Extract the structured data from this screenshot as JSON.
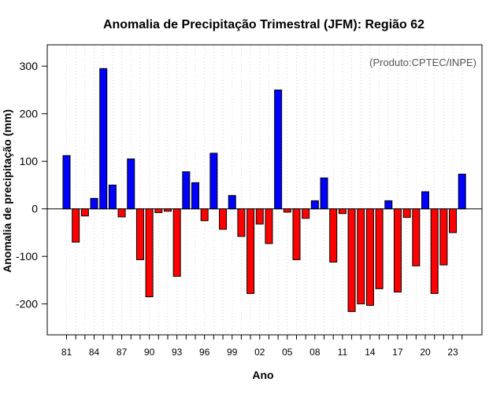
{
  "chart_data": {
    "type": "bar",
    "title": "Anomalia de Precipitação Trimestral (JFM): Região 62",
    "xlabel": "Ano",
    "ylabel": "Anomalia de precipitação (mm)",
    "credit": "(Produto:CPTEC/INPE)",
    "ylim": [
      -265,
      345
    ],
    "yticks": [
      -200,
      -100,
      0,
      100,
      200,
      300
    ],
    "ytick_labels": [
      "-200",
      "-100",
      "0",
      "100",
      "200",
      "300"
    ],
    "xtick_labels": [
      "81",
      "84",
      "87",
      "90",
      "93",
      "96",
      "99",
      "02",
      "05",
      "08",
      "11",
      "14",
      "17",
      "20",
      "23"
    ],
    "xtick_every": 3,
    "grid": "vertical-dotted",
    "positive_color": "#0000ff",
    "negative_color": "#ff0000",
    "categories": [
      "1981",
      "1982",
      "1983",
      "1984",
      "1985",
      "1986",
      "1987",
      "1988",
      "1989",
      "1990",
      "1991",
      "1992",
      "1993",
      "1994",
      "1995",
      "1996",
      "1997",
      "1998",
      "1999",
      "2000",
      "2001",
      "2002",
      "2003",
      "2004",
      "2005",
      "2006",
      "2007",
      "2008",
      "2009",
      "2010",
      "2011",
      "2012",
      "2013",
      "2014",
      "2015",
      "2016",
      "2017",
      "2018",
      "2019",
      "2020",
      "2021",
      "2022",
      "2023",
      "2024"
    ],
    "values": [
      112,
      -70,
      -15,
      22,
      295,
      50,
      -17,
      105,
      -107,
      -185,
      -8,
      -5,
      -142,
      78,
      55,
      -25,
      117,
      -43,
      28,
      -58,
      -178,
      -32,
      -73,
      250,
      -7,
      -107,
      -20,
      17,
      65,
      -112,
      -10,
      -216,
      -200,
      -203,
      -168,
      17,
      -175,
      -18,
      -120,
      36,
      -178,
      -118,
      -50,
      73
    ]
  }
}
